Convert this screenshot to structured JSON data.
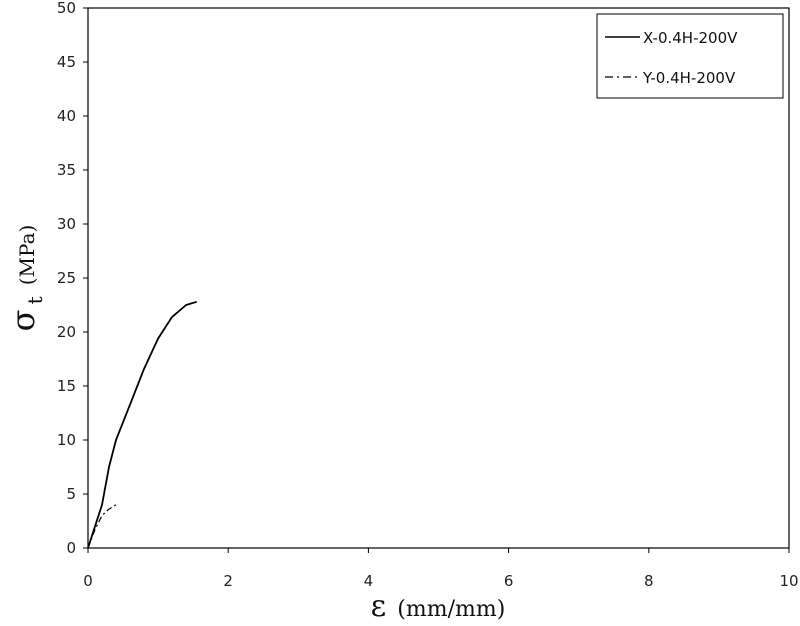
{
  "chart_data": {
    "type": "line",
    "xlabel_symbol": "ε",
    "xlabel_unit": "(mm/mm)",
    "ylabel_symbol": "σ",
    "ylabel_subscript": "t",
    "ylabel_unit": "(MPa)",
    "xlim": [
      0,
      10
    ],
    "ylim": [
      0,
      50
    ],
    "xticks": [
      "0",
      "2",
      "4",
      "6",
      "8",
      "10"
    ],
    "yticks": [
      "0",
      "5",
      "10",
      "15",
      "20",
      "25",
      "30",
      "35",
      "40",
      "45",
      "50"
    ],
    "grid": false,
    "legend_position": "top-right",
    "series": [
      {
        "name": "X-0.4H-200V",
        "style": "solid",
        "color": "#000000",
        "x": [
          0,
          0.1,
          0.2,
          0.3,
          0.4,
          0.6,
          0.8,
          1.0,
          1.2,
          1.4,
          1.55
        ],
        "y": [
          0,
          2.0,
          4.0,
          7.5,
          10.0,
          13.3,
          16.6,
          19.4,
          21.4,
          22.5,
          22.8
        ]
      },
      {
        "name": "Y-0.4H-200V",
        "style": "dashdot",
        "color": "#000000",
        "x": [
          0,
          0.1,
          0.2,
          0.3,
          0.4
        ],
        "y": [
          0,
          1.7,
          3.0,
          3.6,
          4.0
        ]
      }
    ]
  }
}
